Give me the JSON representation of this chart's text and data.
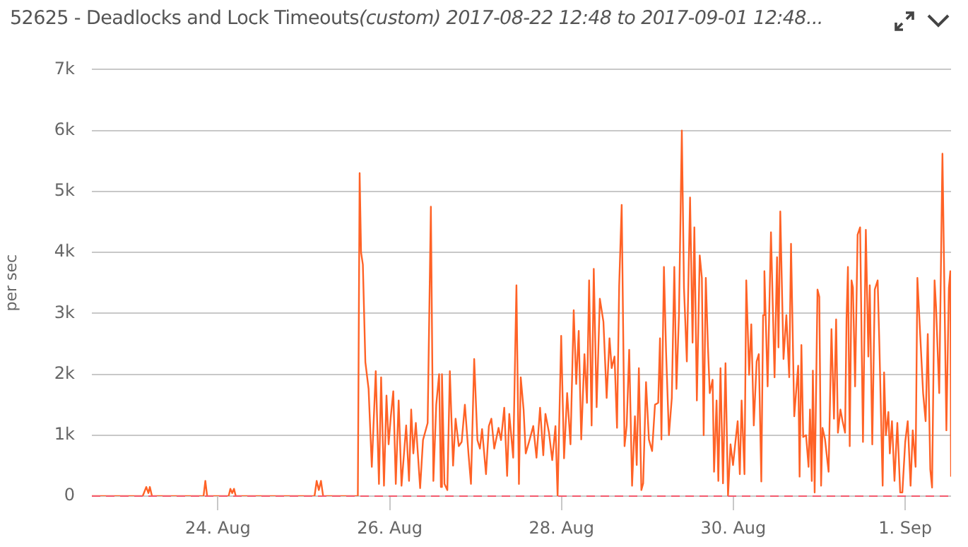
{
  "chart_data": {
    "type": "line",
    "title": "52625 - Deadlocks and Lock Timeouts",
    "subtitle": "(custom) 2017-08-22 12:48 to 2017-09-01 12:48...",
    "ylabel": "per sec",
    "xlim": [
      "2017-08-22T12:48",
      "2017-09-01T12:48"
    ],
    "xticks": [
      {
        "value": "2017-08-24",
        "label": "24. Aug"
      },
      {
        "value": "2017-08-26",
        "label": "26. Aug"
      },
      {
        "value": "2017-08-28",
        "label": "28. Aug"
      },
      {
        "value": "2017-08-30",
        "label": "30. Aug"
      },
      {
        "value": "2017-09-01",
        "label": "1. Sep"
      }
    ],
    "ylim": [
      0,
      7000
    ],
    "yticks": [
      {
        "value": 0,
        "label": "0"
      },
      {
        "value": 1000,
        "label": "1k"
      },
      {
        "value": 2000,
        "label": "2k"
      },
      {
        "value": 3000,
        "label": "3k"
      },
      {
        "value": 4000,
        "label": "4k"
      },
      {
        "value": 5000,
        "label": "5k"
      },
      {
        "value": 6000,
        "label": "6k"
      },
      {
        "value": 7000,
        "label": "7k"
      }
    ],
    "grid": "y",
    "legend": false,
    "marker": "none",
    "line_style": "solid",
    "ref_lines": [
      {
        "axis": "y",
        "value": 0,
        "color": "#f25a6e",
        "line_style": "dashed"
      }
    ],
    "series": [
      {
        "color": "#ff6226",
        "x": [
          "2017-08-22T12:48",
          "2017-08-23T03:00",
          "2017-08-23T04:00",
          "2017-08-23T04:36",
          "2017-08-23T05:00",
          "2017-08-23T05:36",
          "2017-08-23T20:00",
          "2017-08-23T20:30",
          "2017-08-23T21:00",
          "2017-08-24T03:00",
          "2017-08-24T03:30",
          "2017-08-24T04:00",
          "2017-08-24T04:30",
          "2017-08-24T05:00",
          "2017-08-25T03:00",
          "2017-08-25T03:36",
          "2017-08-25T04:12",
          "2017-08-25T04:48",
          "2017-08-25T05:24",
          "2017-08-25T15:06",
          "2017-08-25T15:36",
          "2017-08-25T16:00",
          "2017-08-25T16:30",
          "2017-08-25T17:12",
          "2017-08-25T18:06",
          "2017-08-25T19:00",
          "2017-08-25T20:06",
          "2017-08-25T21:00",
          "2017-08-25T21:36",
          "2017-08-25T22:24",
          "2017-08-25T23:06",
          "2017-08-25T23:42",
          "2017-08-26T00:18",
          "2017-08-26T01:00",
          "2017-08-26T01:42",
          "2017-08-26T02:30",
          "2017-08-26T03:18",
          "2017-08-26T04:36",
          "2017-08-26T05:24",
          "2017-08-26T06:00",
          "2017-08-26T06:36",
          "2017-08-26T07:18",
          "2017-08-26T08:30",
          "2017-08-26T09:18",
          "2017-08-26T10:36",
          "2017-08-26T11:30",
          "2017-08-26T12:12",
          "2017-08-26T13:00",
          "2017-08-26T13:48",
          "2017-08-26T14:18",
          "2017-08-26T14:36",
          "2017-08-26T15:18",
          "2017-08-26T16:06",
          "2017-08-26T16:48",
          "2017-08-26T17:42",
          "2017-08-26T18:24",
          "2017-08-26T19:18",
          "2017-08-26T20:06",
          "2017-08-26T21:00",
          "2017-08-26T22:00",
          "2017-08-26T22:42",
          "2017-08-26T23:36",
          "2017-08-27T00:30",
          "2017-08-27T01:12",
          "2017-08-27T01:48",
          "2017-08-27T02:54",
          "2017-08-27T03:42",
          "2017-08-27T04:24",
          "2017-08-27T05:12",
          "2017-08-27T06:24",
          "2017-08-27T07:06",
          "2017-08-27T08:00",
          "2017-08-27T08:48",
          "2017-08-27T09:24",
          "2017-08-27T10:30",
          "2017-08-27T11:24",
          "2017-08-27T12:06",
          "2017-08-27T12:36",
          "2017-08-27T13:24",
          "2017-08-27T14:00",
          "2017-08-27T15:06",
          "2017-08-27T16:06",
          "2017-08-27T17:00",
          "2017-08-27T18:00",
          "2017-08-27T18:54",
          "2017-08-27T19:30",
          "2017-08-27T20:30",
          "2017-08-27T21:24",
          "2017-08-27T22:18",
          "2017-08-27T22:54",
          "2017-08-27T23:54",
          "2017-08-28T00:42",
          "2017-08-28T01:34",
          "2017-08-28T02:30",
          "2017-08-28T03:24",
          "2017-08-28T04:06",
          "2017-08-28T04:48",
          "2017-08-28T05:30",
          "2017-08-28T06:24",
          "2017-08-28T07:06",
          "2017-08-28T07:42",
          "2017-08-28T08:24",
          "2017-08-28T09:00",
          "2017-08-28T09:48",
          "2017-08-28T10:42",
          "2017-08-28T11:42",
          "2017-08-28T12:36",
          "2017-08-28T13:24",
          "2017-08-28T14:00",
          "2017-08-28T14:48",
          "2017-08-28T15:30",
          "2017-08-28T16:06",
          "2017-08-28T16:48",
          "2017-08-28T17:36",
          "2017-08-28T18:12",
          "2017-08-28T18:54",
          "2017-08-28T19:42",
          "2017-08-28T20:30",
          "2017-08-28T21:00",
          "2017-08-28T21:36",
          "2017-08-28T22:18",
          "2017-08-28T22:48",
          "2017-08-28T23:36",
          "2017-08-29T00:24",
          "2017-08-29T01:18",
          "2017-08-29T02:06",
          "2017-08-29T03:00",
          "2017-08-29T03:30",
          "2017-08-29T03:54",
          "2017-08-29T04:36",
          "2017-08-29T05:12",
          "2017-08-29T06:00",
          "2017-08-29T06:48",
          "2017-08-29T07:30",
          "2017-08-29T08:06",
          "2017-08-29T08:48",
          "2017-08-29T09:36",
          "2017-08-29T10:12",
          "2017-08-29T11:00",
          "2017-08-29T11:54",
          "2017-08-29T12:36",
          "2017-08-29T13:06",
          "2017-08-29T13:48",
          "2017-08-29T14:36",
          "2017-08-29T15:12",
          "2017-08-29T15:42",
          "2017-08-29T16:18",
          "2017-08-29T16:54",
          "2017-08-29T17:24",
          "2017-08-29T18:12",
          "2017-08-29T18:36",
          "2017-08-29T19:18",
          "2017-08-29T19:48",
          "2017-08-29T20:24",
          "2017-08-29T21:06",
          "2017-08-29T21:48",
          "2017-08-29T22:30",
          "2017-08-29T23:12",
          "2017-08-29T23:54",
          "2017-08-30T00:30",
          "2017-08-30T01:12",
          "2017-08-30T01:48",
          "2017-08-30T02:18",
          "2017-08-30T03:06",
          "2017-08-30T03:36",
          "2017-08-30T04:24",
          "2017-08-30T05:00",
          "2017-08-30T05:42",
          "2017-08-30T06:30",
          "2017-08-30T07:06",
          "2017-08-30T07:48",
          "2017-08-30T08:18",
          "2017-08-30T08:40",
          "2017-08-30T09:34",
          "2017-08-30T10:30",
          "2017-08-30T11:30",
          "2017-08-30T12:12",
          "2017-08-30T12:36",
          "2017-08-30T13:06",
          "2017-08-30T14:00",
          "2017-08-30T14:48",
          "2017-08-30T15:36",
          "2017-08-30T16:06",
          "2017-08-30T17:00",
          "2017-08-30T18:06",
          "2017-08-30T18:30",
          "2017-08-30T19:00",
          "2017-08-30T19:30",
          "2017-08-30T20:18",
          "2017-08-30T21:00",
          "2017-08-30T21:24",
          "2017-08-30T21:54",
          "2017-08-30T22:12",
          "2017-08-30T22:42",
          "2017-08-30T23:30",
          "2017-08-31T00:00",
          "2017-08-31T00:30",
          "2017-08-31T00:54",
          "2017-08-31T01:36",
          "2017-08-31T02:36",
          "2017-08-31T03:24",
          "2017-08-31T04:06",
          "2017-08-31T04:42",
          "2017-08-31T05:12",
          "2017-08-31T05:54",
          "2017-08-31T06:30",
          "2017-08-31T07:12",
          "2017-08-31T07:36",
          "2017-08-31T08:00",
          "2017-08-31T08:30",
          "2017-08-31T09:00",
          "2017-08-31T09:24",
          "2017-08-31T10:00",
          "2017-08-31T10:42",
          "2017-08-31T11:24",
          "2017-08-31T12:12",
          "2017-08-31T13:00",
          "2017-08-31T13:42",
          "2017-08-31T14:06",
          "2017-08-31T14:48",
          "2017-08-31T15:30",
          "2017-08-31T16:18",
          "2017-08-31T16:48",
          "2017-08-31T17:42",
          "2017-08-31T18:06",
          "2017-08-31T18:36",
          "2017-08-31T19:18",
          "2017-08-31T19:42",
          "2017-08-31T20:18",
          "2017-08-31T21:00",
          "2017-08-31T21:48",
          "2017-08-31T22:36",
          "2017-08-31T23:12",
          "2017-09-01T00:00",
          "2017-09-01T00:42",
          "2017-09-01T01:30",
          "2017-09-01T02:06",
          "2017-09-01T02:54",
          "2017-09-01T03:24",
          "2017-09-01T04:12",
          "2017-09-01T05:00",
          "2017-09-01T05:42",
          "2017-09-01T06:18",
          "2017-09-01T07:00",
          "2017-09-01T07:30",
          "2017-09-01T08:12",
          "2017-09-01T08:36",
          "2017-09-01T09:30",
          "2017-09-01T10:24",
          "2017-09-01T11:30",
          "2017-09-01T12:12",
          "2017-09-01T12:36",
          "2017-09-01T12:48"
        ],
        "values": [
          0,
          0,
          150,
          50,
          150,
          0,
          0,
          250,
          0,
          0,
          120,
          50,
          120,
          0,
          0,
          250,
          100,
          250,
          0,
          0,
          5300,
          4000,
          3800,
          2200,
          1760,
          480,
          2050,
          200,
          1950,
          170,
          1650,
          850,
          1300,
          1720,
          200,
          1570,
          170,
          1160,
          250,
          1420,
          700,
          1200,
          130,
          920,
          1200,
          4750,
          250,
          1500,
          2000,
          150,
          2000,
          200,
          100,
          2050,
          500,
          1270,
          820,
          890,
          1500,
          700,
          200,
          2250,
          920,
          780,
          1100,
          360,
          1150,
          1270,
          780,
          1120,
          920,
          1450,
          330,
          1350,
          630,
          3460,
          200,
          1950,
          1420,
          700,
          930,
          1150,
          630,
          1450,
          670,
          1350,
          1040,
          590,
          1150,
          0,
          2630,
          620,
          1690,
          850,
          3050,
          1840,
          2710,
          930,
          2330,
          1530,
          3540,
          1160,
          3730,
          1460,
          3240,
          2860,
          1610,
          2590,
          2100,
          2290,
          1120,
          3460,
          4780,
          820,
          1160,
          2400,
          170,
          1310,
          510,
          2100,
          100,
          210,
          1870,
          930,
          740,
          1500,
          1530,
          2590,
          930,
          3760,
          2370,
          1000,
          1610,
          3760,
          1760,
          2970,
          6000,
          3420,
          2210,
          4900,
          2520,
          4410,
          1570,
          3950,
          3580,
          1000,
          3580,
          2440,
          1690,
          1910,
          400,
          1570,
          250,
          2100,
          210,
          2180,
          0,
          850,
          510,
          850,
          1230,
          360,
          1570,
          360,
          3540,
          1990,
          2820,
          1160,
          2210,
          2330,
          240,
          2970,
          3690,
          1800,
          4330,
          1950,
          3920,
          2440,
          4670,
          2250,
          2970,
          1950,
          4140,
          1310,
          2140,
          320,
          2480,
          970,
          1000,
          480,
          1420,
          250,
          2060,
          60,
          3390,
          3270,
          170,
          1120,
          930,
          400,
          2740,
          1270,
          2900,
          1040,
          1420,
          1230,
          1040,
          2900,
          3760,
          820,
          3540,
          3420,
          1800,
          4290,
          4410,
          890,
          4370,
          2290,
          3460,
          850,
          3390,
          3540,
          2440,
          170,
          2030,
          1000,
          1380,
          700,
          1230,
          250,
          1200,
          60,
          60,
          890,
          1230,
          170,
          1080,
          480,
          3580,
          2630,
          1690,
          1230,
          2660,
          440,
          140,
          3540,
          3120,
          1690,
          5620,
          1080,
          3420,
          3690,
          320
        ]
      }
    ]
  }
}
